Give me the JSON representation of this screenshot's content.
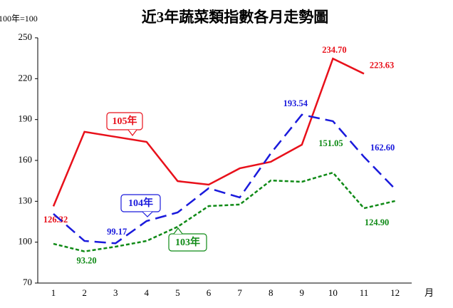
{
  "chart_data": {
    "type": "line",
    "title": "近3年蔬菜類指數各月走勢圖",
    "y_label": "100年=100",
    "x_label": "月",
    "categories": [
      "1",
      "2",
      "3",
      "4",
      "5",
      "6",
      "7",
      "8",
      "9",
      "10",
      "11",
      "12"
    ],
    "ylim": [
      70,
      250
    ],
    "yticks": [
      70,
      100,
      130,
      160,
      190,
      220,
      250
    ],
    "series": [
      {
        "name": "105年",
        "color": "#e8101a",
        "dash": "solid",
        "values": [
          126.32,
          181,
          177.3,
          173.6,
          144.8,
          142.2,
          154.2,
          159,
          171.5,
          234.7,
          223.63,
          null
        ],
        "value_labels": [
          "126.32",
          null,
          null,
          null,
          null,
          null,
          null,
          null,
          null,
          "234.70",
          "223.63",
          null
        ]
      },
      {
        "name": "104年",
        "color": "#1a1adc",
        "dash": "long",
        "values": [
          120.8,
          100.9,
          99.17,
          115.5,
          121.8,
          139.6,
          132.8,
          165.2,
          193.54,
          188.8,
          162.6,
          139.1
        ],
        "value_labels": [
          null,
          null,
          "99.17",
          null,
          null,
          null,
          null,
          null,
          "193.54",
          null,
          "162.60",
          null
        ]
      },
      {
        "name": "103年",
        "color": "#0f8a16",
        "dash": "short",
        "values": [
          98.8,
          93.2,
          96.7,
          100.9,
          111.3,
          126.5,
          127.6,
          145.3,
          144.3,
          151.05,
          124.9,
          130.2
        ],
        "value_labels": [
          null,
          "93.20",
          null,
          null,
          null,
          null,
          null,
          null,
          null,
          "151.05",
          "124.90",
          null
        ]
      }
    ]
  }
}
